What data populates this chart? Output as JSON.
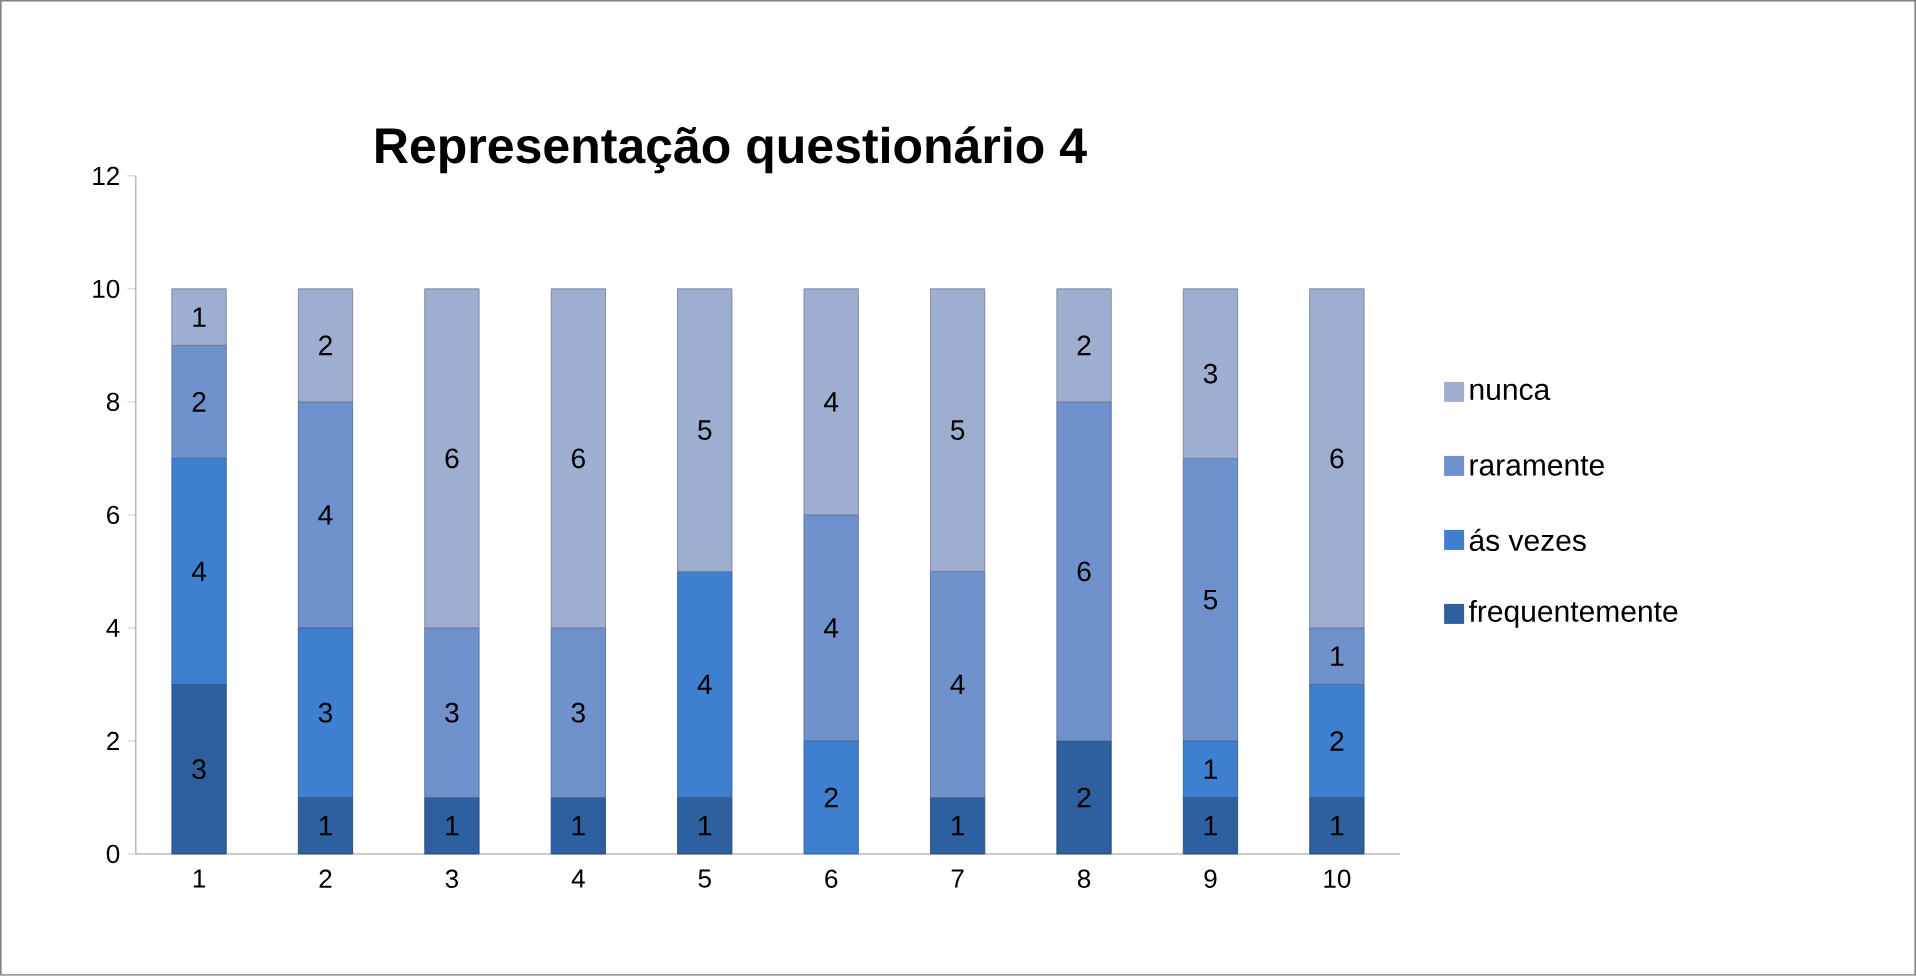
{
  "chart_data": {
    "type": "bar",
    "stacked": true,
    "title": "Representação questionário 4",
    "categories": [
      "1",
      "2",
      "3",
      "4",
      "5",
      "6",
      "7",
      "8",
      "9",
      "10"
    ],
    "series": [
      {
        "name": "frequentemente",
        "color": "#2e5f9e",
        "values": [
          3,
          1,
          1,
          1,
          1,
          null,
          1,
          2,
          1,
          1
        ]
      },
      {
        "name": "ás vezes",
        "color": "#3f7fcf",
        "values": [
          4,
          3,
          null,
          null,
          4,
          2,
          null,
          null,
          1,
          2
        ]
      },
      {
        "name": "raramente",
        "color": "#6f92cc",
        "values": [
          2,
          4,
          3,
          3,
          null,
          4,
          4,
          6,
          5,
          1
        ]
      },
      {
        "name": "nunca",
        "color": "#9eaed0",
        "values": [
          1,
          2,
          6,
          6,
          5,
          4,
          5,
          2,
          3,
          6
        ]
      }
    ],
    "ylim": [
      0,
      12
    ],
    "yticks": [
      0,
      2,
      4,
      6,
      8,
      10,
      12
    ],
    "grid": false,
    "legend": "right",
    "data_labels": true
  }
}
